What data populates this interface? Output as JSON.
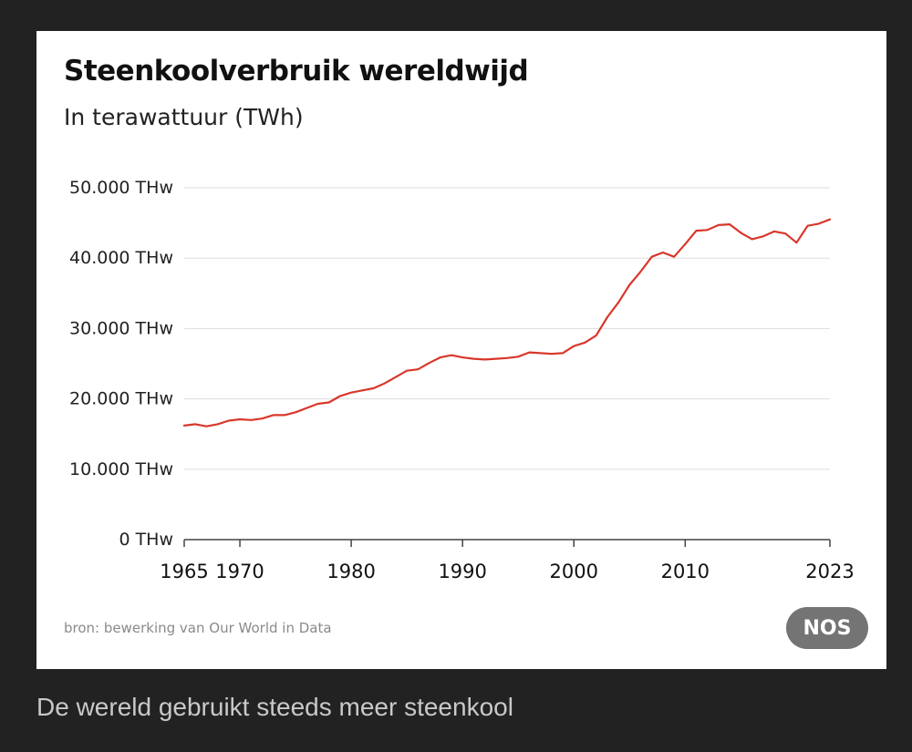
{
  "caption": "De wereld gebruikt steeds meer steenkool",
  "brand_badge": "NOS",
  "source_note": "bron: bewerking van Our World in Data",
  "colors": {
    "page_background": "#222222",
    "card_background": "#ffffff",
    "line": "#d9372b",
    "gridline": "#dddddd",
    "badge": "#747474"
  },
  "chart_data": {
    "type": "line",
    "title": "Steenkoolverbruik wereldwijd",
    "subtitle": "In terawattuur (TWh)",
    "xlabel": "",
    "ylabel": "",
    "xlim": [
      1965,
      2023
    ],
    "ylim": [
      0,
      50000
    ],
    "grid": true,
    "y_ticks": [
      {
        "value": 0,
        "label": "0 THw"
      },
      {
        "value": 10000,
        "label": "10.000 THw"
      },
      {
        "value": 20000,
        "label": "20.000 THw"
      },
      {
        "value": 30000,
        "label": "30.000 THw"
      },
      {
        "value": 40000,
        "label": "40.000 THw"
      },
      {
        "value": 50000,
        "label": "50.000 THw"
      }
    ],
    "x_ticks": [
      {
        "value": 1965,
        "label": "1965"
      },
      {
        "value": 1970,
        "label": "1970"
      },
      {
        "value": 1980,
        "label": "1980"
      },
      {
        "value": 1990,
        "label": "1990"
      },
      {
        "value": 2000,
        "label": "2000"
      },
      {
        "value": 2010,
        "label": "2010"
      },
      {
        "value": 2023,
        "label": "2023"
      }
    ],
    "series": [
      {
        "x": [
          1965,
          1966,
          1967,
          1968,
          1969,
          1970,
          1971,
          1972,
          1973,
          1974,
          1975,
          1976,
          1977,
          1978,
          1979,
          1980,
          1981,
          1982,
          1983,
          1984,
          1985,
          1986,
          1987,
          1988,
          1989,
          1990,
          1991,
          1992,
          1993,
          1994,
          1995,
          1996,
          1997,
          1998,
          1999,
          2000,
          2001,
          2002,
          2003,
          2004,
          2005,
          2006,
          2007,
          2008,
          2009,
          2010,
          2011,
          2012,
          2013,
          2014,
          2015,
          2016,
          2017,
          2018,
          2019,
          2020,
          2021,
          2022,
          2023
        ],
        "values": [
          16200,
          16400,
          16100,
          16400,
          16900,
          17100,
          17000,
          17200,
          17700,
          17700,
          18100,
          18700,
          19300,
          19500,
          20400,
          20900,
          21200,
          21500,
          22200,
          23100,
          24000,
          24200,
          25100,
          25900,
          26200,
          25900,
          25700,
          25600,
          25700,
          25800,
          26000,
          26600,
          26500,
          26400,
          26500,
          27500,
          28000,
          29000,
          31600,
          33700,
          36200,
          38100,
          40200,
          40800,
          40200,
          42000,
          43900,
          44000,
          44700,
          44800,
          43600,
          42700,
          43100,
          43800,
          43500,
          42200,
          44600,
          44900,
          45500
        ]
      }
    ]
  }
}
